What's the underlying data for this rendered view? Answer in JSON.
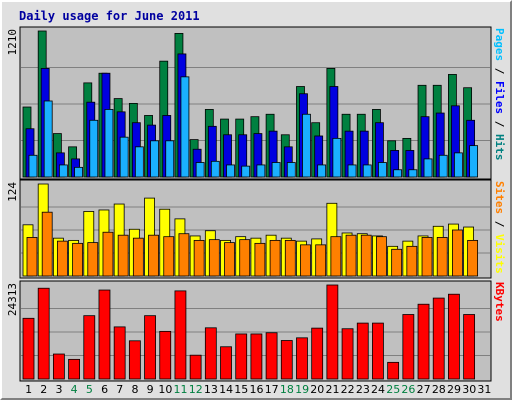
{
  "chart_data": {
    "type": "bar",
    "title": "Daily usage for June 2011",
    "categories": [
      "1",
      "2",
      "3",
      "4",
      "5",
      "6",
      "7",
      "8",
      "9",
      "10",
      "11",
      "12",
      "13",
      "14",
      "15",
      "16",
      "17",
      "18",
      "19",
      "20",
      "21",
      "22",
      "23",
      "24",
      "25",
      "26",
      "27",
      "28",
      "29",
      "30",
      "31"
    ],
    "weekend_days": [
      "4",
      "5",
      "11",
      "12",
      "18",
      "19",
      "25",
      "26"
    ],
    "panels": [
      {
        "key": "hits",
        "max_label": "1210",
        "ylim": [
          0,
          1210
        ],
        "grid": true,
        "axis_label_parts": [
          {
            "text": "Pages",
            "color": "#00bfff"
          },
          {
            "text": " / ",
            "color": "#000000"
          },
          {
            "text": "Files",
            "color": "#0000ff"
          },
          {
            "text": " / ",
            "color": "#000000"
          },
          {
            "text": "Hits",
            "color": "#008080"
          }
        ],
        "series": [
          {
            "name": "Hits",
            "color": "#008040",
            "values": [
              580,
              1210,
              360,
              250,
              780,
              860,
              650,
              610,
              510,
              960,
              1190,
              310,
              560,
              480,
              480,
              500,
              520,
              350,
              750,
              450,
              900,
              520,
              520,
              560,
              300,
              320,
              760,
              760,
              850,
              740,
              0
            ]
          },
          {
            "name": "Files",
            "color": "#0000e0",
            "values": [
              400,
              900,
              200,
              150,
              620,
              860,
              540,
              450,
              430,
              510,
              1020,
              230,
              420,
              350,
              350,
              360,
              380,
              250,
              690,
              340,
              750,
              380,
              380,
              450,
              220,
              220,
              500,
              530,
              590,
              470,
              0
            ]
          },
          {
            "name": "Pages",
            "color": "#1ab0ff",
            "values": [
              180,
              630,
              100,
              80,
              470,
              560,
              330,
              250,
              300,
              300,
              830,
              120,
              130,
              100,
              90,
              100,
              120,
              120,
              520,
              100,
              320,
              100,
              100,
              120,
              60,
              60,
              150,
              180,
              200,
              260,
              0
            ]
          }
        ]
      },
      {
        "key": "visits",
        "max_label": "124",
        "ylim": [
          0,
          124
        ],
        "grid": true,
        "axis_label_parts": [
          {
            "text": "Sites",
            "color": "#ff8000"
          },
          {
            "text": " / ",
            "color": "#000000"
          },
          {
            "text": "Visits",
            "color": "#ffff00"
          }
        ],
        "series": [
          {
            "name": "Visits",
            "color": "#ffff00",
            "values": [
              69,
              124,
              51,
              48,
              87,
              89,
              97,
              63,
              105,
              90,
              77,
              54,
              61,
              48,
              53,
              51,
              55,
              51,
              47,
              50,
              98,
              58,
              57,
              54,
              40,
              47,
              54,
              67,
              70,
              66,
              0
            ]
          },
          {
            "name": "Sites",
            "color": "#ff8000",
            "values": [
              52,
              86,
              47,
              44,
              45,
              59,
              55,
              51,
              55,
              53,
              57,
              48,
              49,
              45,
              49,
              44,
              48,
              48,
              42,
              42,
              53,
              55,
              55,
              53,
              36,
              40,
              52,
              52,
              62,
              48,
              0
            ]
          }
        ]
      },
      {
        "key": "kbytes",
        "max_label": "24313",
        "ylim": [
          0,
          24313
        ],
        "grid": true,
        "axis_label_parts": [
          {
            "text": "KBytes",
            "color": "#ff0000"
          }
        ],
        "series": [
          {
            "name": "KBytes",
            "color": "#ff0000",
            "values": [
              15700,
              23480,
              6460,
              5080,
              16380,
              23010,
              13480,
              9880,
              16380,
              12320,
              22790,
              6160,
              13240,
              8340,
              11650,
              11650,
              11960,
              9960,
              10650,
              13160,
              24313,
              13000,
              14460,
              14460,
              4310,
              16680,
              19340,
              20930,
              21930,
              16680,
              0
            ]
          }
        ]
      }
    ]
  }
}
